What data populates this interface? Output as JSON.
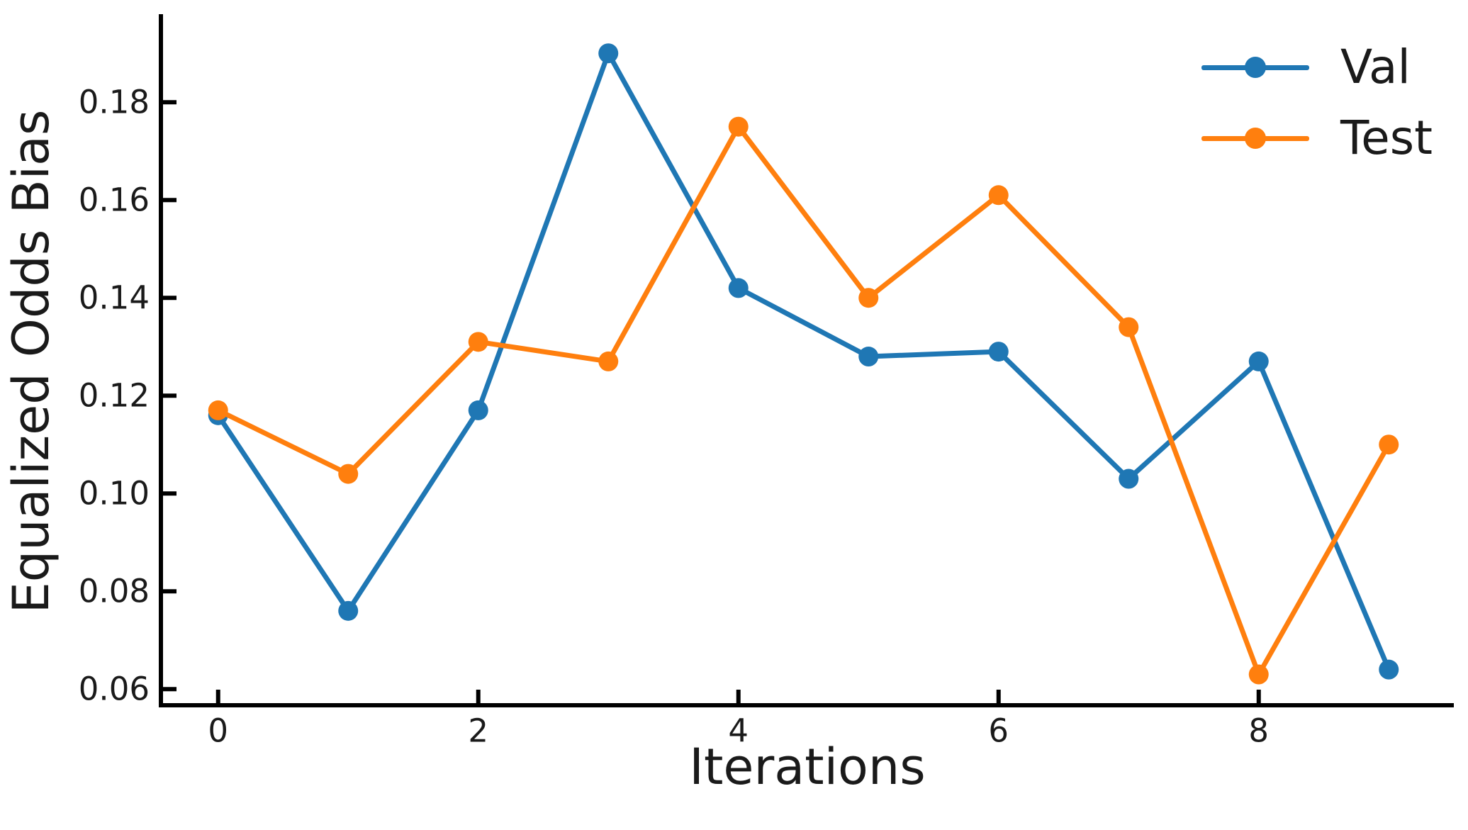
{
  "colors": {
    "val": "#1f77b4",
    "test": "#ff7f0e",
    "axis": "#000000",
    "text": "#1a1a1a"
  },
  "axes": {
    "ylabel": "Equalized Odds Bias",
    "xlabel": "Iterations"
  },
  "legend": {
    "position": "top-right",
    "frame": false,
    "val_label": "Val",
    "test_label": "Test"
  },
  "chart_data": {
    "type": "line",
    "title": "",
    "xlabel": "Iterations",
    "ylabel": "Equalized Odds Bias",
    "x": [
      0,
      1,
      2,
      3,
      4,
      5,
      6,
      7,
      8,
      9
    ],
    "series": [
      {
        "name": "Val",
        "color": "#1f77b4",
        "marker": "circle",
        "values": [
          0.116,
          0.076,
          0.117,
          0.19,
          0.142,
          0.128,
          0.129,
          0.103,
          0.127,
          0.064
        ]
      },
      {
        "name": "Test",
        "color": "#ff7f0e",
        "marker": "circle",
        "values": [
          0.117,
          0.104,
          0.131,
          0.127,
          0.175,
          0.14,
          0.161,
          0.134,
          0.063,
          0.11
        ]
      }
    ],
    "x_ticks": {
      "values": [
        0,
        2,
        4,
        6,
        8
      ],
      "labels": [
        "0",
        "2",
        "4",
        "6",
        "8"
      ]
    },
    "y_ticks": {
      "values": [
        0.06,
        0.08,
        0.1,
        0.12,
        0.14,
        0.16,
        0.18
      ],
      "labels": [
        "0.06",
        "0.08",
        "0.10",
        "0.12",
        "0.14",
        "0.16",
        "0.18"
      ]
    },
    "xlim": [
      -0.44,
      9.5
    ],
    "ylim": [
      0.0567,
      0.198
    ],
    "grid": false,
    "tick_direction": "in",
    "legend_position": "top-right"
  }
}
